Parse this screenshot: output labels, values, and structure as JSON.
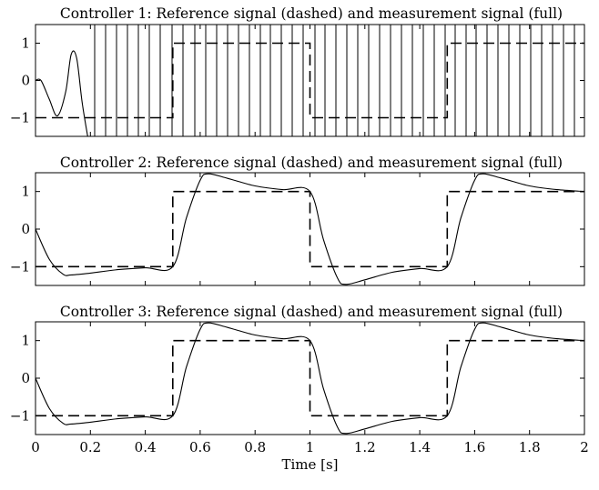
{
  "chart_data": [
    {
      "type": "line",
      "title": "Controller 1: Reference signal (dashed) and measurement signal (full)",
      "xlim": [
        0,
        2
      ],
      "ylim": [
        -1.5,
        1.5
      ],
      "yticks": [
        "1",
        "0",
        "−1"
      ],
      "xticks": [],
      "xlabel": "",
      "grid": false,
      "series": [
        {
          "style": "dashed",
          "x": [
            0,
            0.5,
            0.5,
            1.0,
            1.0,
            1.5,
            1.5,
            2.0
          ],
          "y": [
            -1,
            -1,
            1,
            1,
            -1,
            -1,
            1,
            1
          ]
        },
        {
          "style": "solid",
          "behavior": "unstable oscillation",
          "x": [
            0,
            0.02,
            0.05,
            0.08,
            0.11,
            0.13,
            0.15,
            0.17,
            0.19
          ],
          "y": [
            0,
            0,
            -0.5,
            -0.95,
            -0.3,
            0.7,
            0.6,
            -0.6,
            -1.5
          ]
        }
      ]
    },
    {
      "type": "line",
      "title": "Controller 2: Reference signal (dashed) and measurement signal (full)",
      "xlim": [
        0,
        2
      ],
      "ylim": [
        -1.5,
        1.5
      ],
      "yticks": [
        "1",
        "0",
        "−1"
      ],
      "xticks": [],
      "xlabel": "",
      "grid": false,
      "series": [
        {
          "style": "dashed",
          "x": [
            0,
            0.5,
            0.5,
            1.0,
            1.0,
            1.5,
            1.5,
            2.0
          ],
          "y": [
            -1,
            -1,
            1,
            1,
            -1,
            -1,
            1,
            1
          ]
        },
        {
          "style": "solid",
          "x": [
            0,
            0.05,
            0.1,
            0.13,
            0.2,
            0.3,
            0.4,
            0.5,
            0.55,
            0.6,
            0.63,
            0.7,
            0.8,
            0.9,
            1.0,
            1.05,
            1.1,
            1.13,
            1.2,
            1.3,
            1.4,
            1.5,
            1.55,
            1.6,
            1.63,
            1.7,
            1.8,
            1.9,
            2.0
          ],
          "y": [
            0,
            -0.8,
            -1.2,
            -1.22,
            -1.17,
            -1.08,
            -1.03,
            -1.0,
            0.3,
            1.3,
            1.47,
            1.35,
            1.15,
            1.05,
            1.0,
            -0.3,
            -1.3,
            -1.47,
            -1.35,
            -1.15,
            -1.05,
            -1.0,
            0.3,
            1.3,
            1.47,
            1.35,
            1.15,
            1.05,
            1.0
          ]
        }
      ]
    },
    {
      "type": "line",
      "title": "Controller 3: Reference signal (dashed) and measurement signal (full)",
      "xlim": [
        0,
        2
      ],
      "ylim": [
        -1.5,
        1.5
      ],
      "yticks": [
        "1",
        "0",
        "−1"
      ],
      "xticks": [
        "0",
        "0.2",
        "0.4",
        "0.6",
        "0.8",
        "1",
        "1.2",
        "1.4",
        "1.6",
        "1.8",
        "2"
      ],
      "xlabel": "Time [s]",
      "grid": false,
      "series": [
        {
          "style": "dashed",
          "x": [
            0,
            0.5,
            0.5,
            1.0,
            1.0,
            1.5,
            1.5,
            2.0
          ],
          "y": [
            -1,
            -1,
            1,
            1,
            -1,
            -1,
            1,
            1
          ]
        },
        {
          "style": "solid",
          "x": [
            0,
            0.05,
            0.1,
            0.13,
            0.2,
            0.3,
            0.4,
            0.5,
            0.55,
            0.6,
            0.63,
            0.7,
            0.8,
            0.9,
            1.0,
            1.05,
            1.1,
            1.13,
            1.2,
            1.3,
            1.4,
            1.5,
            1.55,
            1.6,
            1.63,
            1.7,
            1.8,
            1.9,
            2.0
          ],
          "y": [
            0,
            -0.8,
            -1.2,
            -1.22,
            -1.17,
            -1.08,
            -1.03,
            -1.0,
            0.3,
            1.3,
            1.47,
            1.35,
            1.15,
            1.05,
            1.0,
            -0.3,
            -1.3,
            -1.47,
            -1.35,
            -1.15,
            -1.05,
            -1.0,
            0.3,
            1.3,
            1.47,
            1.35,
            1.15,
            1.05,
            1.0
          ]
        }
      ]
    }
  ]
}
